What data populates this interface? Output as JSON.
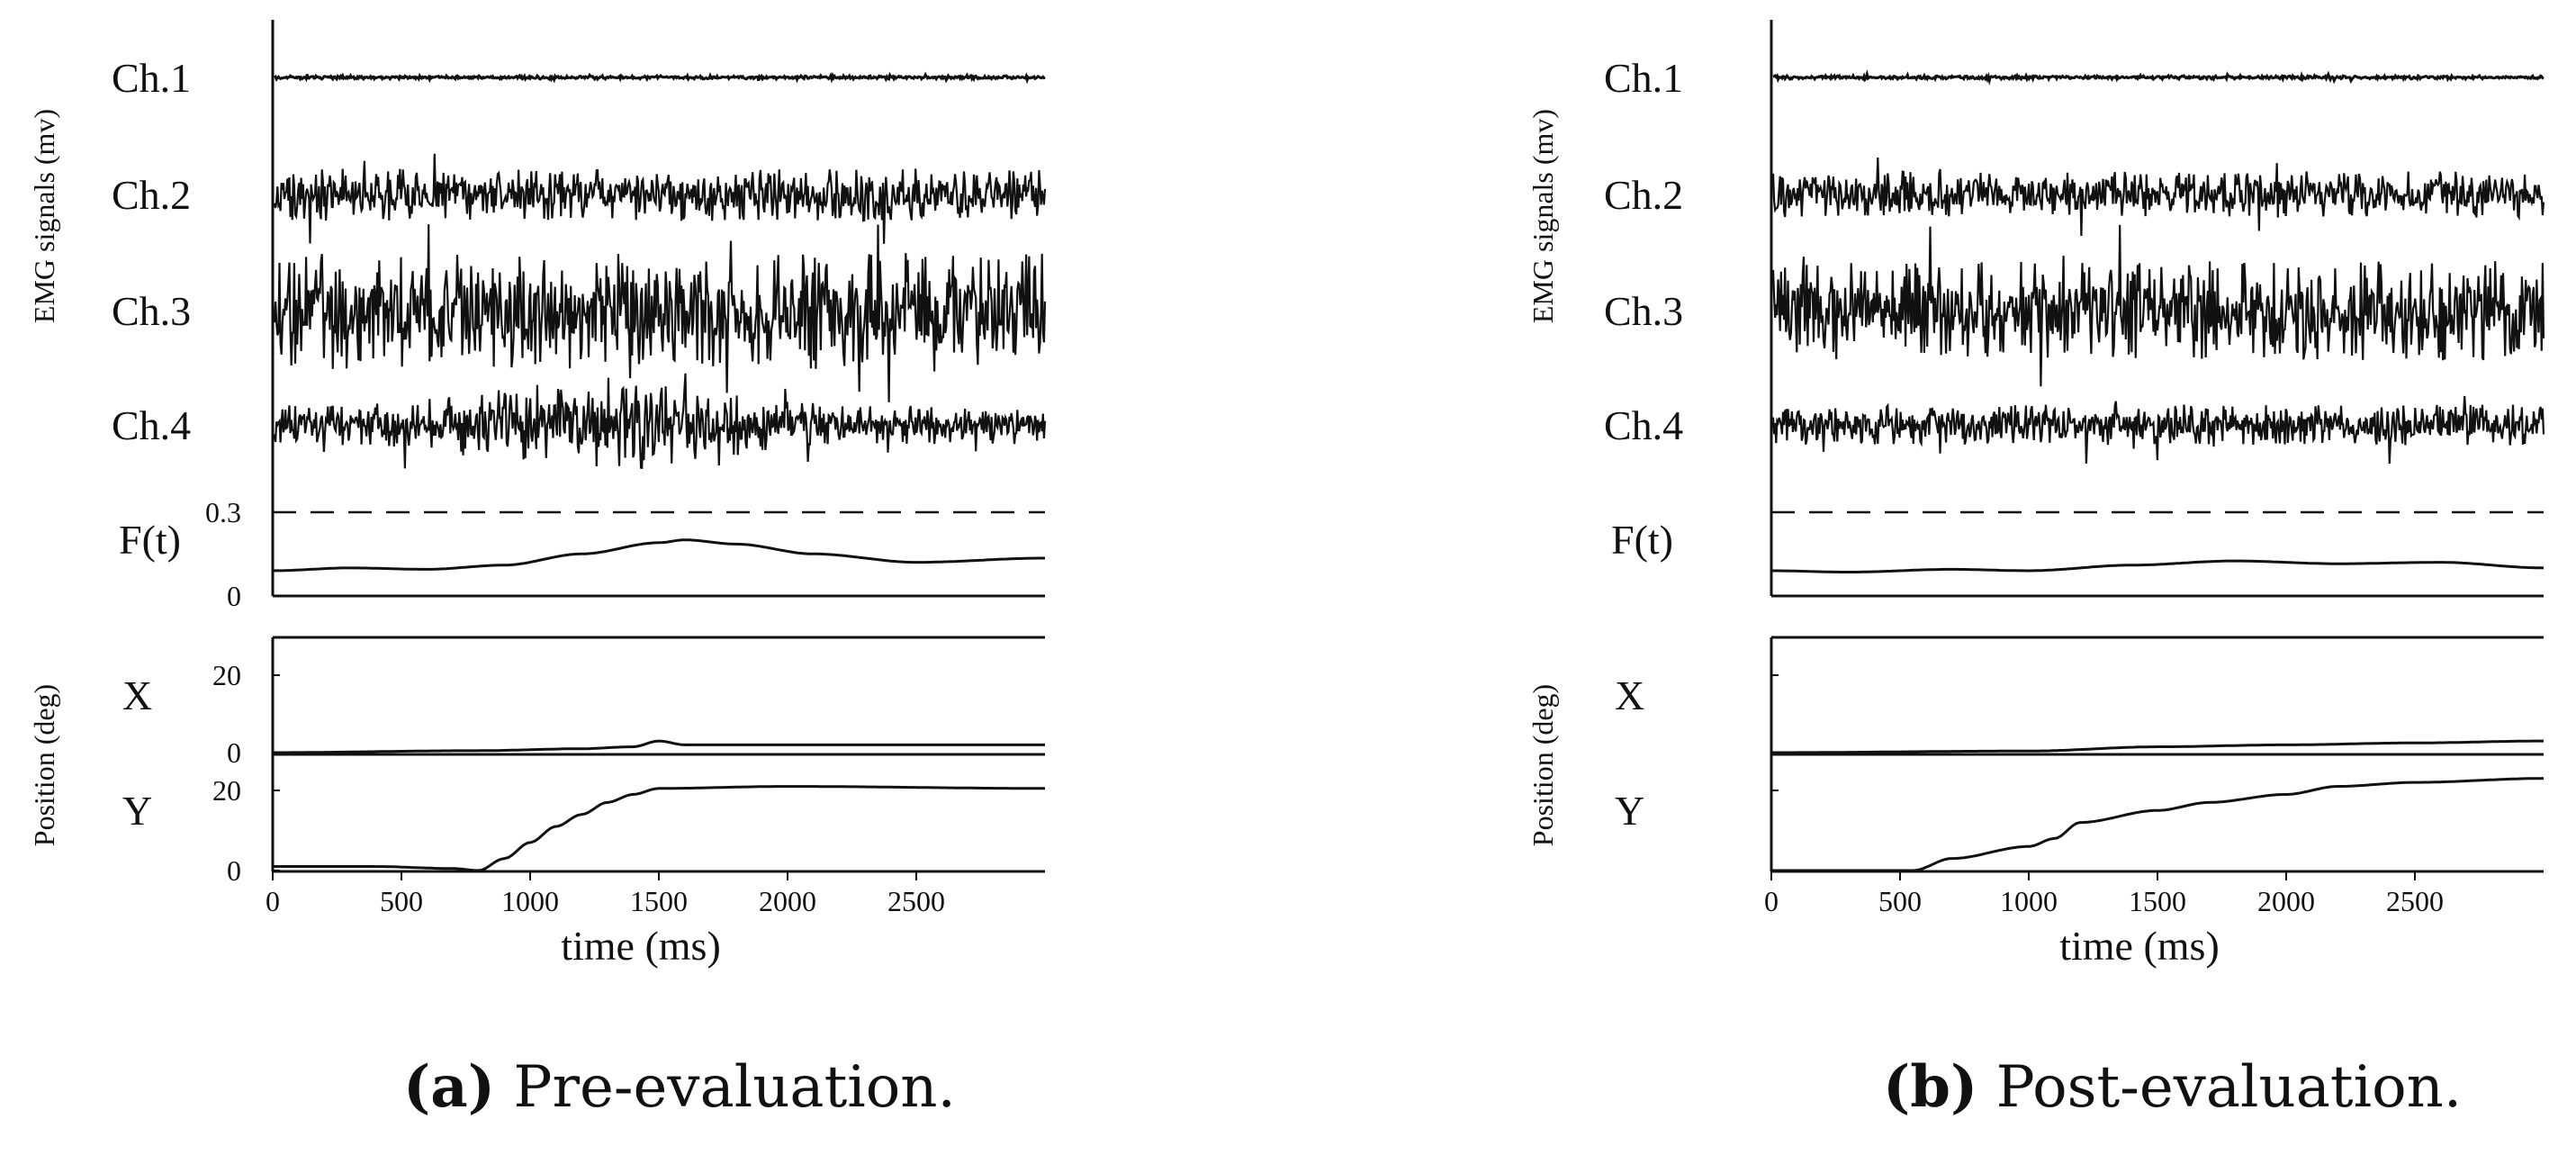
{
  "chart_data": [
    {
      "type": "line",
      "panel": "a",
      "ylabel_top": "EMG signals (mv)",
      "ylabel_bottom": "Position (deg)",
      "xlabel": "time (ms)",
      "xlim": [
        0,
        3000
      ],
      "xticks": [
        0,
        500,
        1000,
        1500,
        2000,
        2500
      ],
      "emg_channels": [
        {
          "name": "Ch.1",
          "amplitude": 0.03
        },
        {
          "name": "Ch.2",
          "amplitude": 0.45
        },
        {
          "name": "Ch.3",
          "amplitude": 1.0
        },
        {
          "name": "Ch.4",
          "amplitude": 0.55
        }
      ],
      "ft": {
        "label": "F(t)",
        "tick_labels": [
          "0.3",
          "0"
        ],
        "threshold": 0.3,
        "ylim": [
          0,
          0.35
        ],
        "x": [
          0,
          300,
          600,
          900,
          1200,
          1500,
          1600,
          1800,
          2100,
          2500,
          3000
        ],
        "y": [
          0.09,
          0.1,
          0.095,
          0.11,
          0.15,
          0.19,
          0.2,
          0.185,
          0.15,
          0.12,
          0.135
        ]
      },
      "position": {
        "x_label": "X",
        "y_label": "Y",
        "x_ticks": [
          "20",
          "0"
        ],
        "y_ticks": [
          "20",
          "0"
        ],
        "ylim": [
          0,
          30
        ],
        "x_series": {
          "x": [
            0,
            800,
            1200,
            1400,
            1500,
            1600,
            2000,
            3000
          ],
          "y": [
            0,
            0.5,
            1,
            1.5,
            3,
            2,
            2,
            2
          ]
        },
        "y_series": {
          "x": [
            0,
            400,
            700,
            800,
            900,
            1000,
            1100,
            1200,
            1300,
            1400,
            1500,
            2000,
            3000
          ],
          "y": [
            1,
            1,
            0.5,
            0,
            3,
            7,
            11,
            14,
            17,
            19,
            20.5,
            21,
            20.5
          ]
        }
      },
      "caption_letter": "(a)",
      "caption_text": " Pre-evaluation."
    },
    {
      "type": "line",
      "panel": "b",
      "ylabel_top": "EMG signals (mv)",
      "ylabel_bottom": "Position (deg)",
      "xlabel": "time (ms)",
      "xlim": [
        0,
        3000
      ],
      "xticks": [
        0,
        500,
        1000,
        1500,
        2000,
        2500
      ],
      "emg_channels": [
        {
          "name": "Ch.1",
          "amplitude": 0.03
        },
        {
          "name": "Ch.2",
          "amplitude": 0.4
        },
        {
          "name": "Ch.3",
          "amplitude": 0.85
        },
        {
          "name": "Ch.4",
          "amplitude": 0.35
        }
      ],
      "ft": {
        "label": "F(t)",
        "tick_labels": [],
        "threshold": 0.3,
        "ylim": [
          0,
          0.35
        ],
        "x": [
          0,
          300,
          700,
          1000,
          1400,
          1800,
          2200,
          2600,
          3000
        ],
        "y": [
          0.09,
          0.085,
          0.095,
          0.09,
          0.11,
          0.125,
          0.115,
          0.12,
          0.1
        ]
      },
      "position": {
        "x_label": "X",
        "y_label": "Y",
        "x_ticks": [],
        "y_ticks": [],
        "ylim": [
          0,
          30
        ],
        "x_series": {
          "x": [
            0,
            1000,
            1500,
            2000,
            2500,
            3000
          ],
          "y": [
            0,
            0.4,
            1.5,
            2,
            2.5,
            3
          ]
        },
        "y_series": {
          "x": [
            0,
            550,
            700,
            1000,
            1100,
            1200,
            1500,
            1700,
            2000,
            2200,
            2500,
            3000
          ],
          "y": [
            0,
            0,
            3,
            6,
            8,
            12,
            15,
            17,
            19,
            21,
            22,
            23
          ]
        }
      },
      "caption_letter": "(b)",
      "caption_text": " Post-evaluation."
    }
  ]
}
